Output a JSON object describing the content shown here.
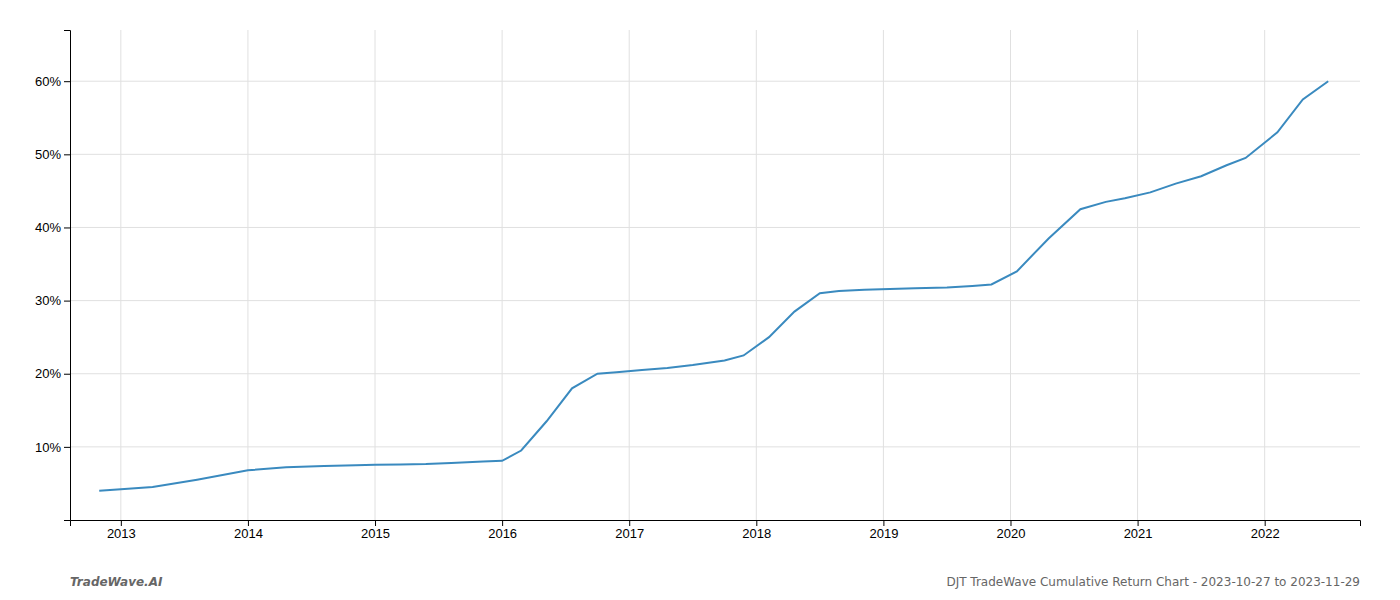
{
  "chart_data": {
    "type": "line",
    "x": [
      2012.83,
      2013.0,
      2013.25,
      2013.6,
      2014.0,
      2014.3,
      2014.6,
      2014.85,
      2015.0,
      2015.2,
      2015.4,
      2015.6,
      2015.85,
      2016.0,
      2016.15,
      2016.35,
      2016.55,
      2016.75,
      2016.9,
      2017.1,
      2017.3,
      2017.5,
      2017.75,
      2017.9,
      2018.1,
      2018.3,
      2018.5,
      2018.65,
      2018.85,
      2019.05,
      2019.25,
      2019.5,
      2019.7,
      2019.85,
      2020.05,
      2020.3,
      2020.55,
      2020.75,
      2020.9,
      2021.1,
      2021.3,
      2021.5,
      2021.7,
      2021.85,
      2022.1,
      2022.3,
      2022.5
    ],
    "values": [
      4.0,
      4.2,
      4.5,
      5.5,
      6.8,
      7.2,
      7.4,
      7.5,
      7.55,
      7.6,
      7.65,
      7.8,
      8.0,
      8.1,
      9.5,
      13.5,
      18.0,
      20.0,
      20.2,
      20.5,
      20.8,
      21.2,
      21.8,
      22.5,
      25.0,
      28.5,
      31.0,
      31.3,
      31.5,
      31.6,
      31.7,
      31.8,
      32.0,
      32.2,
      34.0,
      38.5,
      42.5,
      43.5,
      44.0,
      44.8,
      46.0,
      47.0,
      48.5,
      49.5,
      53.0,
      57.5,
      60.0
    ],
    "color": "#3a8abf",
    "xlim": [
      2012.6,
      2022.75
    ],
    "ylim": [
      0,
      67
    ],
    "xticks": [
      2013,
      2014,
      2015,
      2016,
      2017,
      2018,
      2019,
      2020,
      2021,
      2022
    ],
    "yticks": [
      {
        "value": 10,
        "label": "10%"
      },
      {
        "value": 20,
        "label": "20%"
      },
      {
        "value": 30,
        "label": "30%"
      },
      {
        "value": 40,
        "label": "40%"
      },
      {
        "value": 50,
        "label": "50%"
      },
      {
        "value": 60,
        "label": "60%"
      }
    ],
    "grid": true,
    "annotations": [
      "TradeWave.AI",
      "DJT TradeWave Cumulative Return Chart - 2023-10-27 to 2023-11-29"
    ]
  }
}
